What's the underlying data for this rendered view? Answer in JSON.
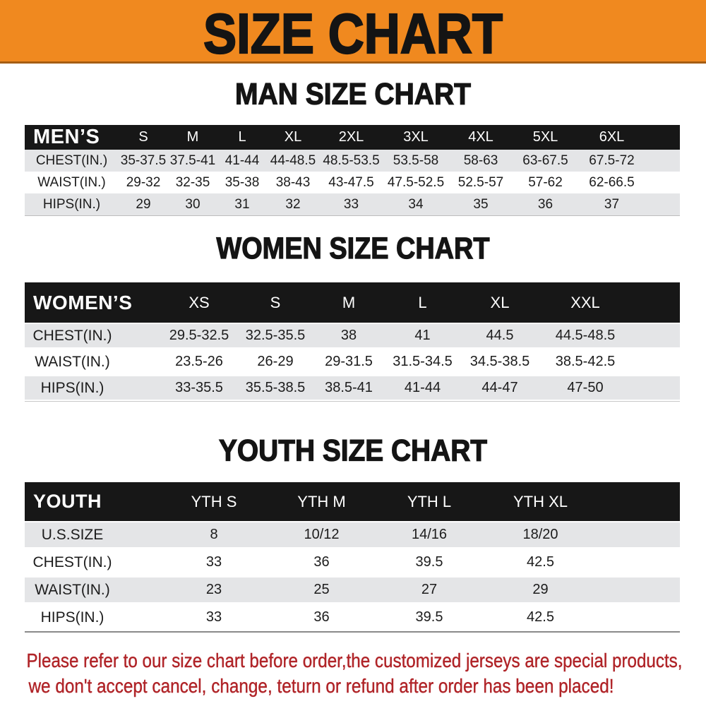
{
  "banner": {
    "title": "SIZE CHART"
  },
  "sections": [
    {
      "title": "MAN SIZE CHART",
      "table": {
        "label": "MEN’S",
        "sizes": [
          "S",
          "M",
          "L",
          "XL",
          "2XL",
          "3XL",
          "4XL",
          "5XL",
          "6XL"
        ],
        "rows": [
          {
            "label": "CHEST(IN.)",
            "values": [
              "35-37.5",
              "37.5-41",
              "41-44",
              "44-48.5",
              "48.5-53.5",
              "53.5-58",
              "58-63",
              "63-67.5",
              "67.5-72"
            ]
          },
          {
            "label": "WAIST(IN.)",
            "values": [
              "29-32",
              "32-35",
              "35-38",
              "38-43",
              "43-47.5",
              "47.5-52.5",
              "52.5-57",
              "57-62",
              "62-66.5"
            ]
          },
          {
            "label": "HIPS(IN.)",
            "values": [
              "29",
              "30",
              "31",
              "32",
              "33",
              "34",
              "35",
              "36",
              "37"
            ]
          }
        ]
      }
    },
    {
      "title": "WOMEN SIZE CHART",
      "table": {
        "label": "WOMEN’S",
        "sizes": [
          "XS",
          "S",
          "M",
          "L",
          "XL",
          "XXL"
        ],
        "rows": [
          {
            "label": "CHEST(IN.)",
            "values": [
              "29.5-32.5",
              "32.5-35.5",
              "38",
              "41",
              "44.5",
              "44.5-48.5"
            ]
          },
          {
            "label": "WAIST(IN.)",
            "values": [
              "23.5-26",
              "26-29",
              "29-31.5",
              "31.5-34.5",
              "34.5-38.5",
              "38.5-42.5"
            ]
          },
          {
            "label": "HIPS(IN.)",
            "values": [
              "33-35.5",
              "35.5-38.5",
              "38.5-41",
              "41-44",
              "44-47",
              "47-50"
            ]
          }
        ]
      }
    },
    {
      "title": "YOUTH SIZE CHART",
      "table": {
        "label": "YOUTH",
        "sizes": [
          "YTH S",
          "YTH M",
          "YTH L",
          "YTH XL"
        ],
        "rows": [
          {
            "label": "U.S.SIZE",
            "values": [
              "8",
              "10/12",
              "14/16",
              "18/20"
            ]
          },
          {
            "label": "CHEST(IN.)",
            "values": [
              "33",
              "36",
              "39.5",
              "42.5"
            ]
          },
          {
            "label": "WAIST(IN.)",
            "values": [
              "23",
              "25",
              "27",
              "29"
            ]
          },
          {
            "label": "HIPS(IN.)",
            "values": [
              "33",
              "36",
              "39.5",
              "42.5"
            ]
          }
        ]
      }
    }
  ],
  "footer": {
    "line1": "Please refer to our size chart before order,the customized jerseys are special products,",
    "line2": "we don't accept cancel, change, teturn or refund after order has been placed!"
  },
  "colors": {
    "banner_orange": "#f0891f",
    "banner_edge": "#a55d13",
    "header_black": "#171717",
    "row_gray": "#e4e5e7",
    "note_red": "#b02428",
    "title_black": "#141414"
  }
}
